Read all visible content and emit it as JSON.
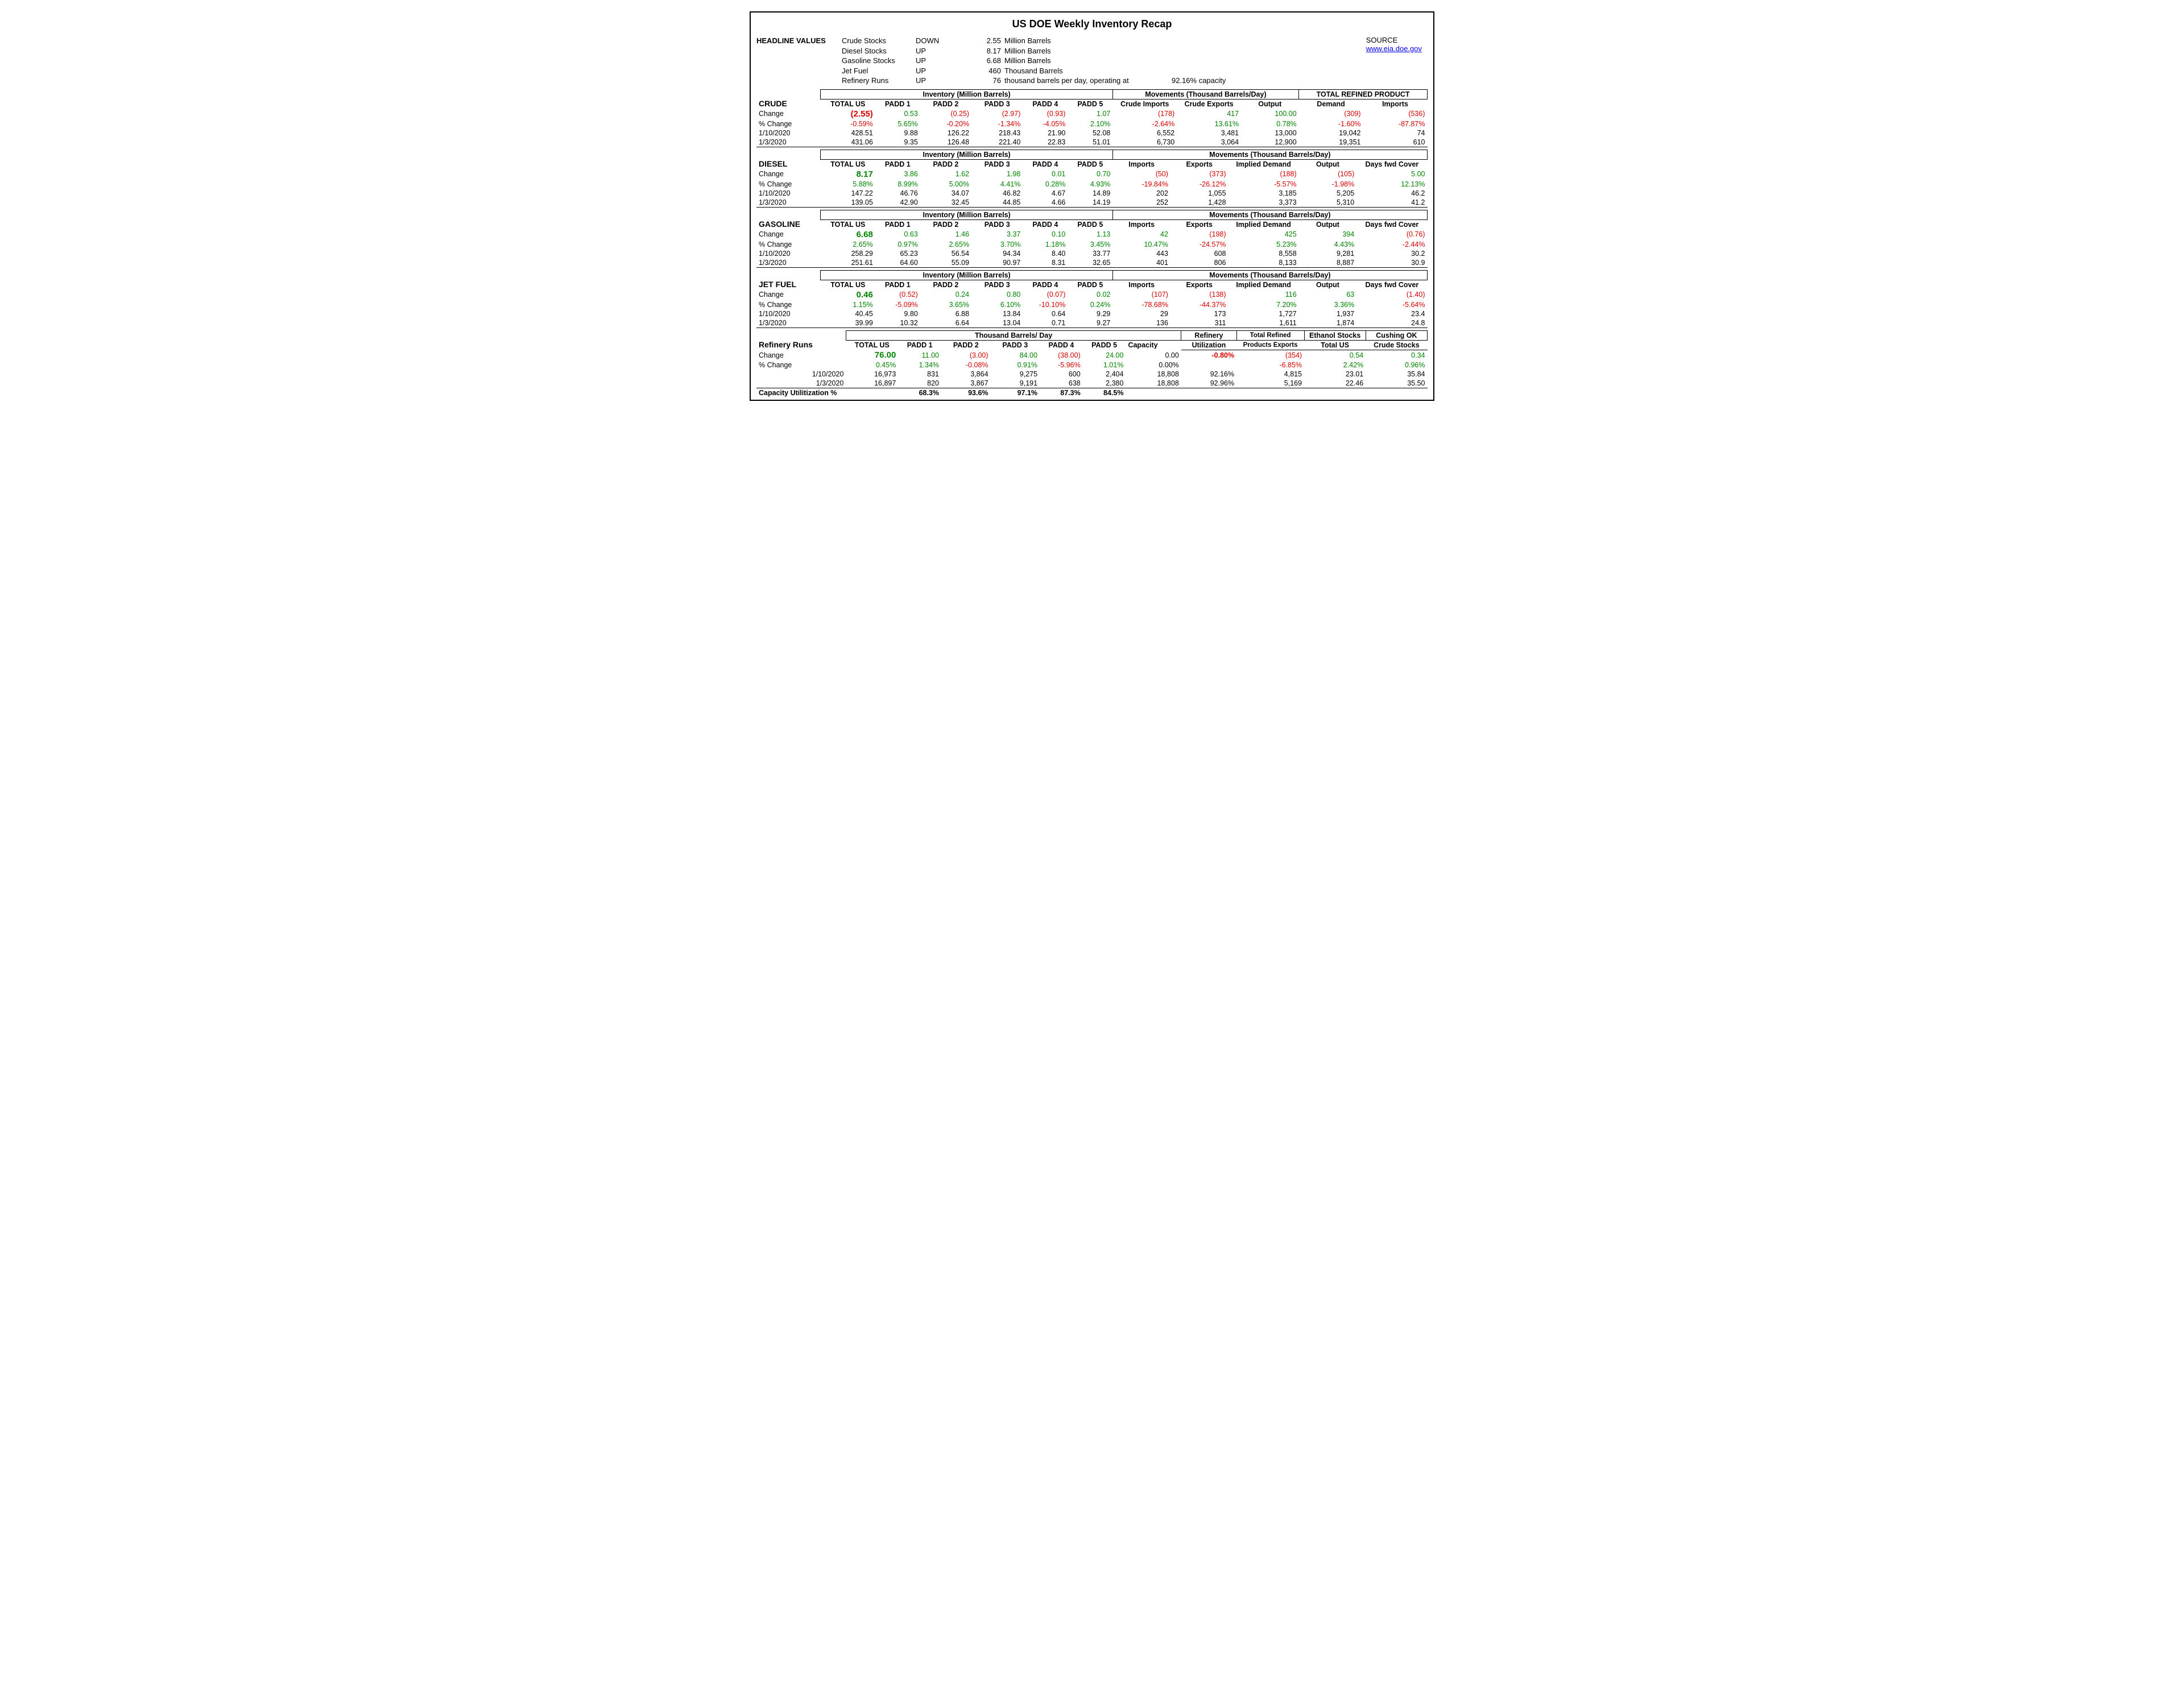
{
  "title": "US DOE Weekly Inventory Recap",
  "headline": {
    "label": "HEADLINE VALUES",
    "rows": [
      {
        "name": "Crude Stocks",
        "dir": "DOWN",
        "val": "2.55",
        "unit": "Million Barrels"
      },
      {
        "name": "Diesel Stocks",
        "dir": "UP",
        "val": "8.17",
        "unit": "Million Barrels"
      },
      {
        "name": "Gasoline Stocks",
        "dir": "UP",
        "val": "6.68",
        "unit": "Million Barrels"
      },
      {
        "name": "Jet Fuel",
        "dir": "UP",
        "val": "460",
        "unit": "Thousand Barrels"
      },
      {
        "name": "Refinery Runs",
        "dir": "UP",
        "val": "76",
        "unit": "thousand barrels per day, operating at",
        "extra": "92.16% capacity"
      }
    ],
    "source_label": "SOURCE",
    "source_url": "www.eia.doe.gov"
  },
  "labels": {
    "inventory": "Inventory (Million Barrels)",
    "movements": "Movements (Thousand Barrels/Day)",
    "total_refined": "TOTAL REFINED PRODUCT",
    "thousand_bpd": "Thousand Barrels/ Day",
    "total_us": "TOTAL US",
    "padd1": "PADD 1",
    "padd2": "PADD 2",
    "padd3": "PADD 3",
    "padd4": "PADD 4",
    "padd5": "PADD 5",
    "change": "Change",
    "pct_change": "% Change",
    "crude_imports": "Crude Imports",
    "crude_exports": "Crude Exports",
    "output": "Output",
    "demand": "Demand",
    "imports": "Imports",
    "exports": "Exports",
    "implied_demand": "Implied Demand",
    "days_fwd": "Days fwd Cover",
    "capacity": "Capacity",
    "refinery": "Refinery",
    "utilization": "Utilization",
    "total_refined_exports": "Total Refined",
    "products_exports": "Products Exports",
    "ethanol_stocks": "Ethanol Stocks",
    "total_us2": "Total US",
    "cushing": "Cushing OK",
    "crude_stocks": "Crude Stocks",
    "cap_util": "Capacity Utilitization %"
  },
  "dates": {
    "d1": "1/10/2020",
    "d2": "1/3/2020"
  },
  "crude": {
    "name": "CRUDE",
    "change": [
      "(2.55)",
      "0.53",
      "(0.25)",
      "(2.97)",
      "(0.93)",
      "1.07",
      "(178)",
      "417",
      "100.00",
      "(309)",
      "(536)"
    ],
    "change_cls": [
      "neg bold",
      "pos",
      "neg",
      "neg",
      "neg",
      "pos",
      "neg",
      "pos",
      "pos",
      "neg",
      "neg"
    ],
    "pct": [
      "-0.59%",
      "5.65%",
      "-0.20%",
      "-1.34%",
      "-4.05%",
      "2.10%",
      "-2.64%",
      "13.61%",
      "0.78%",
      "-1.60%",
      "-87.87%"
    ],
    "pct_cls": [
      "neg",
      "pos",
      "neg",
      "neg",
      "neg",
      "pos",
      "neg",
      "pos",
      "pos",
      "neg",
      "neg"
    ],
    "r1": [
      "428.51",
      "9.88",
      "126.22",
      "218.43",
      "21.90",
      "52.08",
      "6,552",
      "3,481",
      "13,000",
      "19,042",
      "74"
    ],
    "r2": [
      "431.06",
      "9.35",
      "126.48",
      "221.40",
      "22.83",
      "51.01",
      "6,730",
      "3,064",
      "12,900",
      "19,351",
      "610"
    ]
  },
  "diesel": {
    "name": "DIESEL",
    "change": [
      "8.17",
      "3.86",
      "1.62",
      "1.98",
      "0.01",
      "0.70",
      "(50)",
      "(373)",
      "(188)",
      "(105)",
      "5.00"
    ],
    "change_cls": [
      "pos bold",
      "pos",
      "pos",
      "pos",
      "pos",
      "pos",
      "neg",
      "neg",
      "neg",
      "neg",
      "pos"
    ],
    "pct": [
      "5.88%",
      "8.99%",
      "5.00%",
      "4.41%",
      "0.28%",
      "4.93%",
      "-19.84%",
      "-26.12%",
      "-5.57%",
      "-1.98%",
      "12.13%"
    ],
    "pct_cls": [
      "pos",
      "pos",
      "pos",
      "pos",
      "pos",
      "pos",
      "neg",
      "neg",
      "neg",
      "neg",
      "pos"
    ],
    "r1": [
      "147.22",
      "46.76",
      "34.07",
      "46.82",
      "4.67",
      "14.89",
      "202",
      "1,055",
      "3,185",
      "5,205",
      "46.2"
    ],
    "r2": [
      "139.05",
      "42.90",
      "32.45",
      "44.85",
      "4.66",
      "14.19",
      "252",
      "1,428",
      "3,373",
      "5,310",
      "41.2"
    ]
  },
  "gasoline": {
    "name": "GASOLINE",
    "change": [
      "6.68",
      "0.63",
      "1.46",
      "3.37",
      "0.10",
      "1.13",
      "42",
      "(198)",
      "425",
      "394",
      "(0.76)"
    ],
    "change_cls": [
      "pos bold",
      "pos",
      "pos",
      "pos",
      "pos",
      "pos",
      "pos",
      "neg",
      "pos",
      "pos",
      "neg"
    ],
    "pct": [
      "2.65%",
      "0.97%",
      "2.65%",
      "3.70%",
      "1.18%",
      "3.45%",
      "10.47%",
      "-24.57%",
      "5.23%",
      "4.43%",
      "-2.44%"
    ],
    "pct_cls": [
      "pos",
      "pos",
      "pos",
      "pos",
      "pos",
      "pos",
      "pos",
      "neg",
      "pos",
      "pos",
      "neg"
    ],
    "r1": [
      "258.29",
      "65.23",
      "56.54",
      "94.34",
      "8.40",
      "33.77",
      "443",
      "608",
      "8,558",
      "9,281",
      "30.2"
    ],
    "r2": [
      "251.61",
      "64.60",
      "55.09",
      "90.97",
      "8.31",
      "32.65",
      "401",
      "806",
      "8,133",
      "8,887",
      "30.9"
    ]
  },
  "jetfuel": {
    "name": "JET FUEL",
    "change": [
      "0.46",
      "(0.52)",
      "0.24",
      "0.80",
      "(0.07)",
      "0.02",
      "(107)",
      "(138)",
      "116",
      "63",
      "(1.40)"
    ],
    "change_cls": [
      "pos bold",
      "neg",
      "pos",
      "pos",
      "neg",
      "pos",
      "neg",
      "neg",
      "pos",
      "pos",
      "neg"
    ],
    "pct": [
      "1.15%",
      "-5.09%",
      "3.65%",
      "6.10%",
      "-10.10%",
      "0.24%",
      "-78.68%",
      "-44.37%",
      "7.20%",
      "3.36%",
      "-5.64%"
    ],
    "pct_cls": [
      "pos",
      "neg",
      "pos",
      "pos",
      "neg",
      "pos",
      "neg",
      "neg",
      "pos",
      "pos",
      "neg"
    ],
    "r1": [
      "40.45",
      "9.80",
      "6.88",
      "13.84",
      "0.64",
      "9.29",
      "29",
      "173",
      "1,727",
      "1,937",
      "23.4"
    ],
    "r2": [
      "39.99",
      "10.32",
      "6.64",
      "13.04",
      "0.71",
      "9.27",
      "136",
      "311",
      "1,611",
      "1,874",
      "24.8"
    ]
  },
  "refinery": {
    "name": "Refinery Runs",
    "change": [
      "76.00",
      "11.00",
      "(3.00)",
      "84.00",
      "(38.00)",
      "24.00",
      "0.00",
      "-0.80%",
      "(354)",
      "0.54",
      "0.34"
    ],
    "change_cls": [
      "pos bold",
      "pos",
      "neg",
      "pos",
      "neg",
      "pos",
      "",
      "neg bold",
      "neg",
      "pos",
      "pos"
    ],
    "pct": [
      "0.45%",
      "1.34%",
      "-0.08%",
      "0.91%",
      "-5.96%",
      "1.01%",
      "0.00%",
      "",
      "-6.85%",
      "2.42%",
      "0.96%"
    ],
    "pct_cls": [
      "pos",
      "pos",
      "neg",
      "pos",
      "neg",
      "pos",
      "",
      "",
      "neg",
      "pos",
      "pos"
    ],
    "r1": [
      "16,973",
      "831",
      "3,864",
      "9,275",
      "600",
      "2,404",
      "18,808",
      "92.16%",
      "4,815",
      "23.01",
      "35.84"
    ],
    "r2": [
      "16,897",
      "820",
      "3,867",
      "9,191",
      "638",
      "2,380",
      "18,808",
      "92.96%",
      "5,169",
      "22.46",
      "35.50"
    ],
    "caputil": [
      "",
      "68.3%",
      "93.6%",
      "97.1%",
      "87.3%",
      "84.5%",
      "",
      "",
      "",
      "",
      ""
    ]
  },
  "style": {
    "neg_color": "#d40000",
    "pos_color": "#008200",
    "font_family": "Arial",
    "border_color": "#000000",
    "link_color": "#0000ee",
    "bg": "#ffffff"
  }
}
